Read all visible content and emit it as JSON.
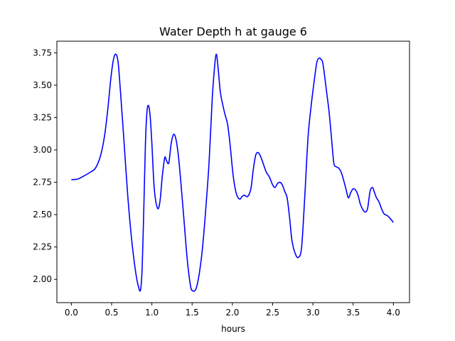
{
  "chart_data": {
    "type": "line",
    "title": "Water Depth h at gauge 6",
    "xlabel": "hours",
    "ylabel": "",
    "xlim": [
      -0.18,
      4.2
    ],
    "ylim": [
      1.82,
      3.84
    ],
    "xticks": [
      0.0,
      0.5,
      1.0,
      1.5,
      2.0,
      2.5,
      3.0,
      3.5,
      4.0
    ],
    "xtick_labels": [
      "0.0",
      "0.5",
      "1.0",
      "1.5",
      "2.0",
      "2.5",
      "3.0",
      "3.5",
      "4.0"
    ],
    "yticks": [
      2.0,
      2.25,
      2.5,
      2.75,
      3.0,
      3.25,
      3.5,
      3.75
    ],
    "ytick_labels": [
      "2.00",
      "2.25",
      "2.50",
      "2.75",
      "3.00",
      "3.25",
      "3.50",
      "3.75"
    ],
    "grid": false,
    "series": [
      {
        "color": "#0000ff",
        "x": [
          0.0,
          0.08,
          0.16,
          0.24,
          0.3,
          0.36,
          0.41,
          0.45,
          0.49,
          0.52,
          0.55,
          0.58,
          0.61,
          0.65,
          0.7,
          0.75,
          0.8,
          0.835,
          0.86,
          0.88,
          0.9,
          0.92,
          0.94,
          0.96,
          0.98,
          1.0,
          1.03,
          1.07,
          1.1,
          1.13,
          1.16,
          1.18,
          1.21,
          1.24,
          1.27,
          1.3,
          1.33,
          1.36,
          1.4,
          1.44,
          1.48,
          1.51,
          1.55,
          1.59,
          1.63,
          1.67,
          1.71,
          1.75,
          1.78,
          1.8,
          1.82,
          1.85,
          1.88,
          1.91,
          1.94,
          1.97,
          2.01,
          2.05,
          2.09,
          2.12,
          2.15,
          2.19,
          2.23,
          2.26,
          2.29,
          2.32,
          2.35,
          2.38,
          2.42,
          2.46,
          2.5,
          2.53,
          2.56,
          2.59,
          2.62,
          2.65,
          2.68,
          2.71,
          2.74,
          2.78,
          2.82,
          2.86,
          2.9,
          2.94,
          2.98,
          3.02,
          3.05,
          3.08,
          3.1,
          3.12,
          3.14,
          3.17,
          3.2,
          3.23,
          3.26,
          3.29,
          3.32,
          3.35,
          3.38,
          3.41,
          3.44,
          3.47,
          3.5,
          3.53,
          3.56,
          3.59,
          3.62,
          3.65,
          3.68,
          3.71,
          3.74,
          3.76,
          3.79,
          3.82,
          3.85,
          3.88,
          3.9,
          3.93,
          3.96,
          4.0
        ],
        "y": [
          2.77,
          2.775,
          2.8,
          2.83,
          2.86,
          2.95,
          3.1,
          3.3,
          3.55,
          3.69,
          3.74,
          3.68,
          3.45,
          3.1,
          2.65,
          2.3,
          2.05,
          1.94,
          1.92,
          2.1,
          2.55,
          3.05,
          3.3,
          3.34,
          3.25,
          3.05,
          2.7,
          2.55,
          2.6,
          2.8,
          2.94,
          2.92,
          2.9,
          3.05,
          3.12,
          3.08,
          2.95,
          2.75,
          2.45,
          2.15,
          1.95,
          1.91,
          1.93,
          2.05,
          2.25,
          2.55,
          2.9,
          3.4,
          3.65,
          3.74,
          3.65,
          3.45,
          3.35,
          3.27,
          3.2,
          3.05,
          2.8,
          2.66,
          2.62,
          2.64,
          2.65,
          2.64,
          2.7,
          2.85,
          2.96,
          2.98,
          2.95,
          2.9,
          2.83,
          2.79,
          2.73,
          2.71,
          2.74,
          2.75,
          2.73,
          2.68,
          2.63,
          2.48,
          2.3,
          2.2,
          2.17,
          2.25,
          2.65,
          3.1,
          3.35,
          3.55,
          3.68,
          3.71,
          3.7,
          3.68,
          3.6,
          3.45,
          3.3,
          3.1,
          2.9,
          2.87,
          2.86,
          2.83,
          2.77,
          2.7,
          2.63,
          2.67,
          2.7,
          2.69,
          2.65,
          2.58,
          2.54,
          2.52,
          2.55,
          2.68,
          2.71,
          2.68,
          2.63,
          2.6,
          2.55,
          2.51,
          2.5,
          2.49,
          2.47,
          2.44
        ]
      }
    ]
  }
}
